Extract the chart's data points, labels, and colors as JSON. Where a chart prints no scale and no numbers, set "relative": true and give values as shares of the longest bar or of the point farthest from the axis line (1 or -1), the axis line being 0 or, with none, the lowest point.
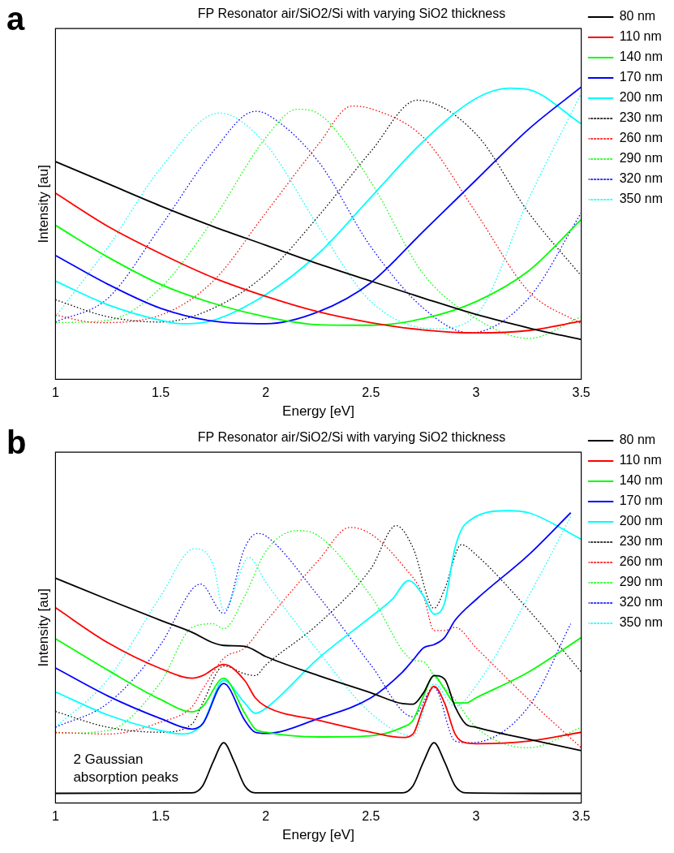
{
  "chart_data": [
    {
      "type": "line",
      "title": "FP Resonator air/SiO2/Si with varying SiO2 thickness",
      "xlabel": "Energy [eV]",
      "ylabel": "Intensity [au]",
      "relative": true,
      "xlim": [
        1,
        3.5
      ],
      "xticks": [
        1,
        1.5,
        2,
        2.5,
        3,
        3.5
      ],
      "legend": "top right",
      "annotations": [
        "a"
      ],
      "series": [
        {
          "name": "80 nm",
          "color": "#000000",
          "line_style": "solid",
          "x": [
            1,
            1.25,
            1.5,
            1.75,
            2,
            2.25,
            2.5,
            2.75,
            3,
            3.25,
            3.5
          ],
          "values": [
            0.745,
            0.669,
            0.593,
            0.523,
            0.459,
            0.395,
            0.336,
            0.278,
            0.222,
            0.176,
            0.136
          ]
        },
        {
          "name": "110 nm",
          "color": "#ff0000",
          "line_style": "solid",
          "x": [
            1,
            1.25,
            1.5,
            1.75,
            2,
            2.25,
            2.5,
            2.75,
            3,
            3.25,
            3.5
          ],
          "values": [
            0.637,
            0.523,
            0.43,
            0.348,
            0.284,
            0.231,
            0.194,
            0.169,
            0.159,
            0.167,
            0.199
          ]
        },
        {
          "name": "140 nm",
          "color": "#00ff00",
          "line_style": "solid",
          "x": [
            1,
            1.25,
            1.5,
            1.75,
            2,
            2.25,
            2.5,
            2.75,
            3,
            3.25,
            3.5
          ],
          "values": [
            0.527,
            0.418,
            0.325,
            0.26,
            0.214,
            0.187,
            0.185,
            0.208,
            0.266,
            0.371,
            0.547
          ]
        },
        {
          "name": "170 nm",
          "color": "#0000ff",
          "line_style": "solid",
          "x": [
            1,
            1.25,
            1.5,
            1.75,
            2,
            2.25,
            2.5,
            2.75,
            3,
            3.25,
            3.5
          ],
          "values": [
            0.424,
            0.325,
            0.243,
            0.199,
            0.19,
            0.231,
            0.331,
            0.507,
            0.682,
            0.856,
            1.0
          ]
        },
        {
          "name": "200 nm",
          "color": "#00ffff",
          "line_style": "solid",
          "x": [
            1,
            1.25,
            1.5,
            1.6,
            1.75,
            2,
            2.25,
            2.5,
            2.75,
            3,
            3.16,
            3.25,
            3.5
          ],
          "values": [
            0.336,
            0.255,
            0.202,
            0.19,
            0.202,
            0.29,
            0.43,
            0.623,
            0.815,
            0.961,
            0.996,
            0.991,
            0.874
          ]
        },
        {
          "name": "230 nm",
          "color": "#000000",
          "line_style": "dotted",
          "x": [
            1,
            1.25,
            1.5,
            1.75,
            2,
            2.25,
            2.5,
            2.72,
            3,
            3.25,
            3.5
          ],
          "values": [
            0.272,
            0.214,
            0.196,
            0.243,
            0.36,
            0.558,
            0.78,
            0.955,
            0.839,
            0.57,
            0.354
          ]
        },
        {
          "name": "260 nm",
          "color": "#ff0000",
          "line_style": "dotted",
          "x": [
            1,
            1.2,
            1.5,
            1.75,
            2,
            2.25,
            2.41,
            2.5,
            2.75,
            3,
            3.25,
            3.5
          ],
          "values": [
            0.22,
            0.194,
            0.22,
            0.336,
            0.57,
            0.804,
            0.935,
            0.926,
            0.827,
            0.57,
            0.301,
            0.19
          ]
        },
        {
          "name": "290 nm",
          "color": "#00ff00",
          "line_style": "dotted",
          "x": [
            1,
            1.25,
            1.5,
            1.75,
            2,
            2.15,
            2.25,
            2.5,
            2.75,
            3,
            3.25,
            3.5
          ],
          "values": [
            0.194,
            0.202,
            0.313,
            0.547,
            0.827,
            0.924,
            0.909,
            0.675,
            0.36,
            0.208,
            0.14,
            0.214
          ]
        },
        {
          "name": "320 nm",
          "color": "#0000ff",
          "line_style": "dotted",
          "x": [
            1,
            1.25,
            1.5,
            1.75,
            1.95,
            2,
            2.25,
            2.5,
            2.75,
            2.97,
            3.25,
            3.5
          ],
          "values": [
            0.196,
            0.278,
            0.523,
            0.78,
            0.917,
            0.909,
            0.745,
            0.453,
            0.243,
            0.159,
            0.278,
            0.57
          ]
        },
        {
          "name": "350 nm",
          "color": "#00ffff",
          "line_style": "dotted",
          "x": [
            1,
            1.25,
            1.5,
            1.78,
            2,
            2.25,
            2.5,
            2.8,
            3,
            3.25,
            3.5
          ],
          "values": [
            0.214,
            0.453,
            0.722,
            0.911,
            0.804,
            0.523,
            0.266,
            0.173,
            0.22,
            0.617,
            0.979
          ]
        }
      ]
    },
    {
      "type": "line",
      "title": "FP Resonator air/SiO2/Si with varying SiO2 thickness",
      "xlabel": "Energy [eV]",
      "ylabel": "Intensity [au]",
      "relative": true,
      "xlim": [
        1,
        3.5
      ],
      "xticks": [
        1,
        1.5,
        2,
        2.5,
        3,
        3.5
      ],
      "legend": "top right",
      "annotations": [
        "b",
        "2 Gaussian absorption peaks"
      ],
      "series": [
        {
          "name": "80 nm",
          "color": "#000000",
          "line_style": "solid",
          "x": [
            1,
            1.25,
            1.5,
            1.65,
            1.75,
            1.8,
            1.9,
            2,
            2.25,
            2.5,
            2.65,
            2.7,
            2.75,
            2.8,
            2.85,
            2.9,
            2.95,
            3,
            3.25,
            3.5
          ],
          "values": [
            0.769,
            0.696,
            0.625,
            0.584,
            0.548,
            0.539,
            0.536,
            0.501,
            0.436,
            0.377,
            0.34,
            0.338,
            0.377,
            0.436,
            0.424,
            0.33,
            0.271,
            0.259,
            0.218,
            0.179
          ]
        },
        {
          "name": "110 nm",
          "color": "#ff0000",
          "line_style": "solid",
          "x": [
            1,
            1.25,
            1.5,
            1.65,
            1.7,
            1.8,
            1.9,
            1.95,
            2,
            2.25,
            2.5,
            2.65,
            2.7,
            2.75,
            2.8,
            2.85,
            2.9,
            2.95,
            3,
            3.25,
            3.5
          ],
          "values": [
            0.668,
            0.548,
            0.46,
            0.427,
            0.436,
            0.474,
            0.419,
            0.36,
            0.33,
            0.283,
            0.242,
            0.224,
            0.236,
            0.33,
            0.399,
            0.342,
            0.236,
            0.206,
            0.203,
            0.212,
            0.242
          ]
        },
        {
          "name": "140 nm",
          "color": "#00ff00",
          "line_style": "solid",
          "x": [
            1,
            1.25,
            1.5,
            1.65,
            1.7,
            1.8,
            1.9,
            1.95,
            2,
            2.25,
            2.5,
            2.65,
            2.7,
            2.75,
            2.8,
            2.85,
            2.9,
            2.95,
            3,
            3.25,
            3.5
          ],
          "values": [
            0.562,
            0.454,
            0.354,
            0.312,
            0.33,
            0.427,
            0.307,
            0.253,
            0.242,
            0.226,
            0.23,
            0.259,
            0.283,
            0.366,
            0.436,
            0.389,
            0.342,
            0.342,
            0.36,
            0.448,
            0.566
          ]
        },
        {
          "name": "170 nm",
          "color": "#0000ff",
          "line_style": "solid",
          "x": [
            1,
            1.25,
            1.5,
            1.65,
            1.7,
            1.8,
            1.9,
            1.95,
            2,
            2.25,
            2.5,
            2.65,
            2.7,
            2.75,
            2.8,
            2.85,
            2.9,
            3,
            3.25,
            3.45
          ],
          "values": [
            0.462,
            0.366,
            0.289,
            0.253,
            0.271,
            0.409,
            0.283,
            0.242,
            0.238,
            0.289,
            0.36,
            0.448,
            0.489,
            0.531,
            0.542,
            0.566,
            0.625,
            0.696,
            0.849,
            0.993
          ]
        },
        {
          "name": "200 nm",
          "color": "#00ffff",
          "line_style": "solid",
          "x": [
            1,
            1.25,
            1.5,
            1.6,
            1.65,
            1.7,
            1.8,
            1.9,
            1.95,
            2,
            2.25,
            2.5,
            2.6,
            2.68,
            2.75,
            2.8,
            2.85,
            2.9,
            2.95,
            3.15,
            3.25,
            3.5
          ],
          "values": [
            0.38,
            0.301,
            0.248,
            0.236,
            0.242,
            0.271,
            0.419,
            0.342,
            0.307,
            0.324,
            0.495,
            0.637,
            0.696,
            0.761,
            0.708,
            0.646,
            0.684,
            0.873,
            0.955,
            1.0,
            0.993,
            0.902
          ]
        },
        {
          "name": "230 nm",
          "color": "#000000",
          "line_style": "dotted",
          "x": [
            1,
            1.25,
            1.5,
            1.65,
            1.7,
            1.8,
            1.9,
            1.95,
            2,
            2.25,
            2.5,
            2.62,
            2.7,
            2.8,
            2.85,
            2.93,
            3,
            3.25,
            3.5
          ],
          "values": [
            0.313,
            0.259,
            0.242,
            0.271,
            0.342,
            0.469,
            0.442,
            0.436,
            0.472,
            0.613,
            0.802,
            0.949,
            0.873,
            0.666,
            0.731,
            0.884,
            0.849,
            0.66,
            0.448
          ]
        },
        {
          "name": "260 nm",
          "color": "#ff0000",
          "line_style": "dotted",
          "x": [
            1,
            1.25,
            1.5,
            1.65,
            1.7,
            1.8,
            1.9,
            2,
            2.25,
            2.4,
            2.5,
            2.65,
            2.75,
            2.8,
            2.85,
            2.9,
            3,
            3.25,
            3.5
          ],
          "values": [
            0.242,
            0.236,
            0.277,
            0.33,
            0.389,
            0.495,
            0.531,
            0.62,
            0.83,
            0.943,
            0.92,
            0.814,
            0.708,
            0.59,
            0.59,
            0.601,
            0.531,
            0.354,
            0.189
          ]
        },
        {
          "name": "290 nm",
          "color": "#00ff00",
          "line_style": "dotted",
          "x": [
            1,
            1.25,
            1.5,
            1.65,
            1.75,
            1.8,
            1.9,
            2,
            2.15,
            2.25,
            2.5,
            2.7,
            2.75,
            2.8,
            2.9,
            3,
            3.25,
            3.5
          ],
          "values": [
            0.238,
            0.248,
            0.413,
            0.601,
            0.613,
            0.596,
            0.708,
            0.861,
            0.932,
            0.914,
            0.708,
            0.489,
            0.483,
            0.436,
            0.354,
            0.259,
            0.189,
            0.259
          ]
        },
        {
          "name": "320 nm",
          "color": "#0000ff",
          "line_style": "dotted",
          "x": [
            1,
            1.25,
            1.5,
            1.65,
            1.69,
            1.8,
            1.9,
            1.96,
            2,
            2.25,
            2.5,
            2.7,
            2.8,
            2.9,
            2.97,
            3.25,
            3.45
          ],
          "values": [
            0.259,
            0.342,
            0.542,
            0.731,
            0.749,
            0.649,
            0.873,
            0.922,
            0.914,
            0.708,
            0.472,
            0.295,
            0.395,
            0.212,
            0.206,
            0.33,
            0.613
          ]
        },
        {
          "name": "350 nm",
          "color": "#00ffff",
          "line_style": "dotted",
          "x": [
            1,
            1.25,
            1.5,
            1.66,
            1.75,
            1.8,
            1.92,
            2,
            2.25,
            2.5,
            2.7,
            2.8,
            2.9,
            3,
            3.25,
            3.45
          ],
          "values": [
            0.259,
            0.424,
            0.708,
            0.87,
            0.814,
            0.66,
            0.84,
            0.755,
            0.519,
            0.307,
            0.23,
            0.407,
            0.33,
            0.401,
            0.708,
            0.979
          ]
        },
        {
          "color": "#000000",
          "line_style": "solid",
          "x": [
            1,
            1.65,
            1.7,
            1.75,
            1.8,
            1.85,
            1.9,
            1.95,
            2.65,
            2.7,
            2.75,
            2.8,
            2.85,
            2.9,
            2.95,
            3.5
          ],
          "values": [
            0.033,
            0.035,
            0.059,
            0.141,
            0.206,
            0.141,
            0.059,
            0.035,
            0.035,
            0.059,
            0.141,
            0.206,
            0.141,
            0.059,
            0.035,
            0.033
          ]
        }
      ]
    }
  ]
}
